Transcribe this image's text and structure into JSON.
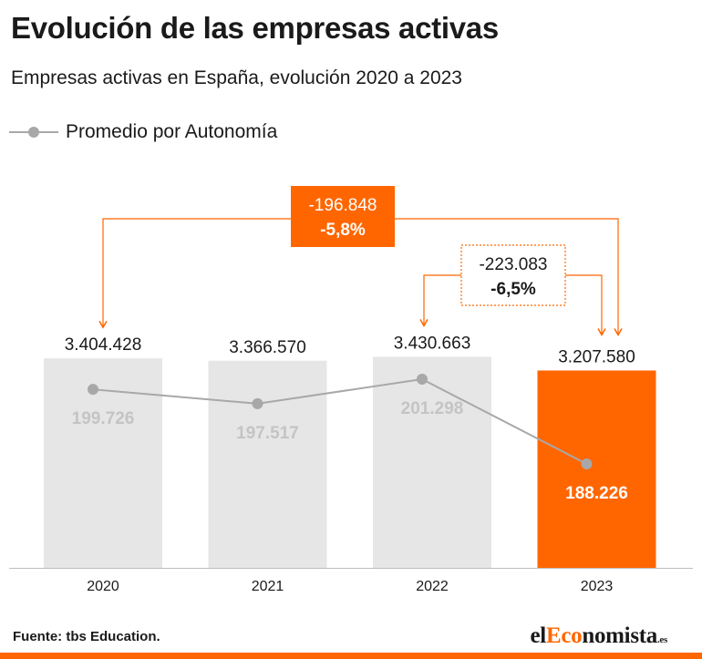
{
  "title": "Evolución de las empresas activas",
  "subtitle": "Empresas activas en España, evolución 2020 a 2023",
  "legend": {
    "line_label": "Promedio por Autonomía"
  },
  "source": "Fuente: tbs Education.",
  "brand": {
    "prefix": "el",
    "highlight": "Eco",
    "suffix": "nomista",
    "tld": ".es"
  },
  "colors": {
    "bar": "#e6e6e6",
    "bar_highlight": "#ff6600",
    "line": "#a8a8a8",
    "accent": "#ff6600"
  },
  "annotations": [
    {
      "from": "2020",
      "to": "2023",
      "diff": "-196.848",
      "pct": "-5,8%",
      "style": "filled"
    },
    {
      "from": "2022",
      "to": "2023",
      "diff": "-223.083",
      "pct": "-6,5%",
      "style": "dashed"
    }
  ],
  "chart_data": {
    "type": "bar",
    "categories": [
      "2020",
      "2021",
      "2022",
      "2023"
    ],
    "series": [
      {
        "type": "bar",
        "values": [
          3404428,
          3366570,
          3430663,
          3207580
        ],
        "labels": [
          "3.404.428",
          "3.366.570",
          "3.430.663",
          "3.207.580"
        ],
        "highlight_index": 3
      },
      {
        "name": "Promedio por Autonomía",
        "type": "line",
        "values": [
          199726,
          197517,
          201298,
          188226
        ],
        "labels": [
          "199.726",
          "197.517",
          "201.298",
          "188.226"
        ]
      }
    ],
    "ylim": [
      0,
      3500000
    ],
    "grid": false,
    "legend_position": "top-left"
  }
}
